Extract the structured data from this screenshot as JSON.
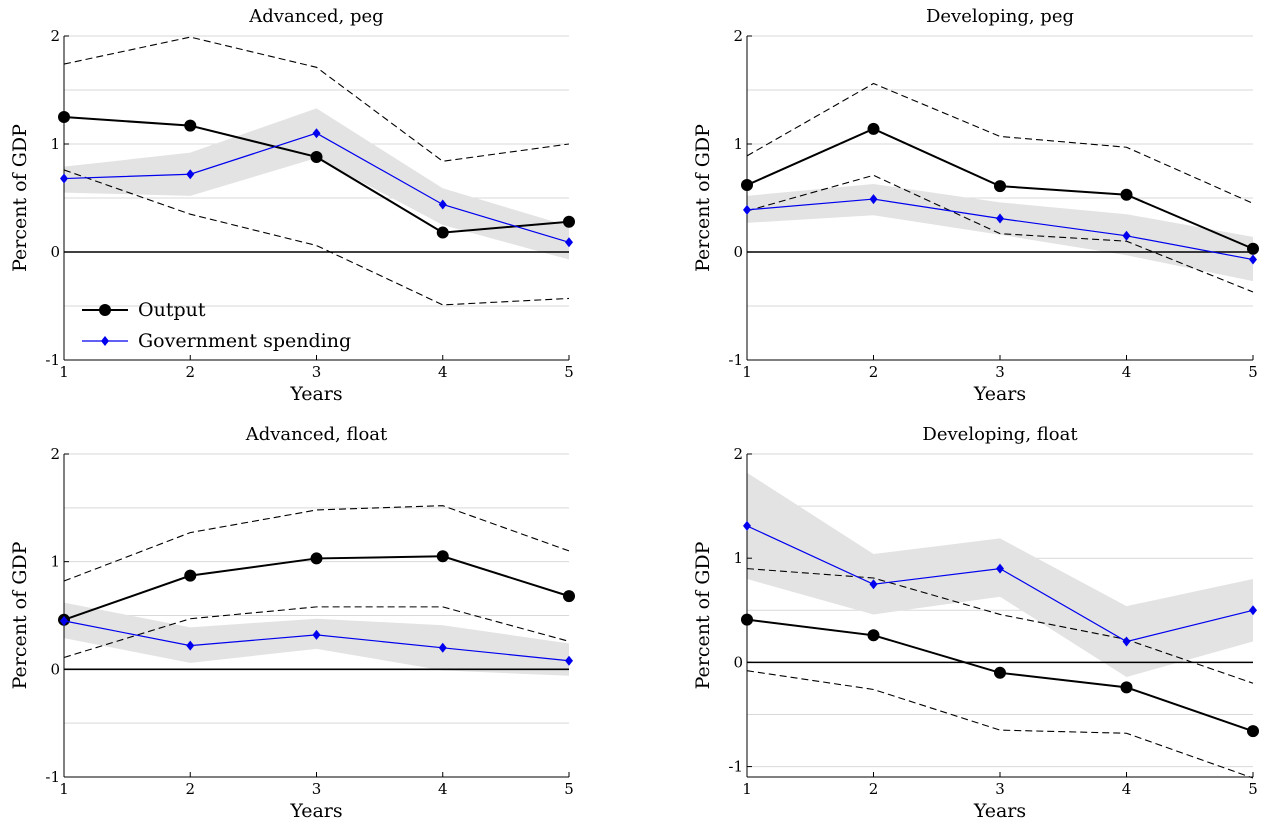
{
  "chart_data": [
    {
      "type": "line",
      "title": "Advanced, peg",
      "xlabel": "Years",
      "ylabel": "Percent of GDP",
      "x": [
        1,
        2,
        3,
        4,
        5
      ],
      "xlim": [
        1,
        5
      ],
      "ylim": [
        -1,
        2
      ],
      "x_tick_labels": [
        "1",
        "2",
        "3",
        "4",
        "5"
      ],
      "y_tick_labels": [
        "-1",
        "0",
        "1",
        "2"
      ],
      "y_ticks": [
        -1,
        0,
        1,
        2
      ],
      "grid": true,
      "legend": {
        "placement": "bottom-left",
        "entries": [
          "Output",
          "Government spending"
        ]
      },
      "series": [
        {
          "name": "Output",
          "values": [
            1.25,
            1.17,
            0.88,
            0.18,
            0.28
          ],
          "color": "#000000",
          "marker": "circle"
        },
        {
          "name": "Government spending",
          "values": [
            0.68,
            0.72,
            1.1,
            0.44,
            0.09
          ],
          "color": "#0000ee",
          "marker": "diamond"
        }
      ],
      "output_band": {
        "lower": [
          0.76,
          0.35,
          0.06,
          -0.49,
          -0.43
        ],
        "upper": [
          1.74,
          1.99,
          1.71,
          0.84,
          1.0
        ]
      },
      "spending_band": {
        "lower": [
          0.55,
          0.52,
          0.87,
          0.25,
          -0.07
        ],
        "upper": [
          0.79,
          0.92,
          1.33,
          0.59,
          0.24
        ]
      }
    },
    {
      "type": "line",
      "title": "Developing, peg",
      "xlabel": "Years",
      "ylabel": "Percent of GDP",
      "x": [
        1,
        2,
        3,
        4,
        5
      ],
      "xlim": [
        1,
        5
      ],
      "ylim": [
        -1,
        2
      ],
      "x_tick_labels": [
        "1",
        "2",
        "3",
        "4",
        "5"
      ],
      "y_tick_labels": [
        "-1",
        "0",
        "1",
        "2"
      ],
      "y_ticks": [
        -1,
        0,
        1,
        2
      ],
      "grid": true,
      "series": [
        {
          "name": "Output",
          "values": [
            0.62,
            1.14,
            0.61,
            0.53,
            0.03
          ],
          "color": "#000000",
          "marker": "circle"
        },
        {
          "name": "Government spending",
          "values": [
            0.39,
            0.49,
            0.31,
            0.15,
            -0.07
          ],
          "color": "#0000ee",
          "marker": "diamond"
        }
      ],
      "output_band": {
        "lower": [
          0.38,
          0.71,
          0.17,
          0.1,
          -0.37
        ],
        "upper": [
          0.89,
          1.56,
          1.07,
          0.97,
          0.45
        ]
      },
      "spending_band": {
        "lower": [
          0.27,
          0.34,
          0.16,
          -0.03,
          -0.27
        ],
        "upper": [
          0.52,
          0.63,
          0.46,
          0.35,
          0.14
        ]
      }
    },
    {
      "type": "line",
      "title": "Advanced, float",
      "xlabel": "Years",
      "ylabel": "Percent of GDP",
      "x": [
        1,
        2,
        3,
        4,
        5
      ],
      "xlim": [
        1,
        5
      ],
      "ylim": [
        -1,
        2
      ],
      "x_tick_labels": [
        "1",
        "2",
        "3",
        "4",
        "5"
      ],
      "y_tick_labels": [
        "-1",
        "0",
        "1",
        "2"
      ],
      "y_ticks": [
        -1,
        0,
        1,
        2
      ],
      "grid": true,
      "series": [
        {
          "name": "Output",
          "values": [
            0.46,
            0.87,
            1.03,
            1.05,
            0.68
          ],
          "color": "#000000",
          "marker": "circle"
        },
        {
          "name": "Government spending",
          "values": [
            0.45,
            0.22,
            0.32,
            0.2,
            0.08
          ],
          "color": "#0000ee",
          "marker": "diamond"
        }
      ],
      "output_band": {
        "lower": [
          0.11,
          0.47,
          0.58,
          0.58,
          0.26
        ],
        "upper": [
          0.82,
          1.27,
          1.48,
          1.52,
          1.1
        ]
      },
      "spending_band": {
        "lower": [
          0.29,
          0.06,
          0.19,
          -0.01,
          -0.06
        ],
        "upper": [
          0.62,
          0.39,
          0.47,
          0.41,
          0.24
        ]
      }
    },
    {
      "type": "line",
      "title": "Developing, float",
      "xlabel": "Years",
      "ylabel": "Percent of GDP",
      "x": [
        1,
        2,
        3,
        4,
        5
      ],
      "xlim": [
        1,
        5
      ],
      "ylim": [
        -1.1,
        2
      ],
      "x_tick_labels": [
        "1",
        "2",
        "3",
        "4",
        "5"
      ],
      "y_tick_labels": [
        "-1",
        "0",
        "1",
        "2"
      ],
      "y_ticks": [
        -1,
        0,
        1,
        2
      ],
      "grid": true,
      "series": [
        {
          "name": "Output",
          "values": [
            0.41,
            0.26,
            -0.1,
            -0.24,
            -0.66
          ],
          "color": "#000000",
          "marker": "circle"
        },
        {
          "name": "Government spending",
          "values": [
            1.31,
            0.75,
            0.9,
            0.2,
            0.5
          ],
          "color": "#0000ee",
          "marker": "diamond"
        }
      ],
      "output_band": {
        "lower": [
          -0.08,
          -0.26,
          -0.65,
          -0.68,
          -1.11
        ],
        "upper": [
          0.9,
          0.81,
          0.46,
          0.22,
          -0.2
        ]
      },
      "spending_band": {
        "lower": [
          0.8,
          0.46,
          0.63,
          -0.14,
          0.2
        ],
        "upper": [
          1.82,
          1.04,
          1.19,
          0.54,
          0.8
        ]
      }
    }
  ],
  "colors": {
    "output": "#000000",
    "spending": "#0000ee",
    "band": "#e3e3e3",
    "grid": "#d9d9d9",
    "zero_line": "#000000"
  }
}
